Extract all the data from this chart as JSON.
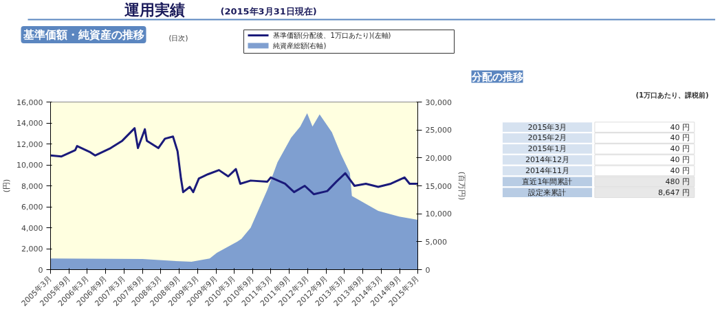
{
  "chart_data": [
    {
      "type": "line",
      "title": "運用実績",
      "subtitle": "(2015年3月31日現在)",
      "annotations": [
        "基準価額・純資産の推移",
        "(日次)"
      ],
      "ylabel": "(円)",
      "y2label": "(百万円)",
      "xlim": [
        "2005-03",
        "2015-03"
      ],
      "xticks": [
        {
          "value": "2005-03",
          "label": "2005年3月"
        },
        {
          "value": "2005-09",
          "label": "2005年9月"
        },
        {
          "value": "2006-03",
          "label": "2006年3月"
        },
        {
          "value": "2006-09",
          "label": "2006年9月"
        },
        {
          "value": "2007-03",
          "label": "2007年3月"
        },
        {
          "value": "2007-09",
          "label": "2007年9月"
        },
        {
          "value": "2008-03",
          "label": "2008年3月"
        },
        {
          "value": "2008-09",
          "label": "2008年9月"
        },
        {
          "value": "2009-03",
          "label": "2009年3月"
        },
        {
          "value": "2009-09",
          "label": "2009年9月"
        },
        {
          "value": "2010-03",
          "label": "2010年3月"
        },
        {
          "value": "2010-09",
          "label": "2010年9月"
        },
        {
          "value": "2011-03",
          "label": "2011年3月"
        },
        {
          "value": "2011-09",
          "label": "2011年9月"
        },
        {
          "value": "2012-03",
          "label": "2012年3月"
        },
        {
          "value": "2012-09",
          "label": "2012年9月"
        },
        {
          "value": "2013-03",
          "label": "2013年3月"
        },
        {
          "value": "2013-09",
          "label": "2013年9月"
        },
        {
          "value": "2014-03",
          "label": "2014年3月"
        },
        {
          "value": "2014-09",
          "label": "2014年9月"
        },
        {
          "value": "2015-03",
          "label": "2015年3月"
        }
      ],
      "ylim": [
        0,
        16000
      ],
      "yticks": [
        0,
        {
          "value": 2000,
          "label": "2,000"
        },
        {
          "value": 4000,
          "label": "4,000"
        },
        {
          "value": 6000,
          "label": "6,000"
        },
        {
          "value": 8000,
          "label": "8,000"
        },
        {
          "value": 10000,
          "label": "10,000"
        },
        {
          "value": 12000,
          "label": "12,000"
        },
        {
          "value": 14000,
          "label": "14,000"
        },
        {
          "value": 16000,
          "label": "16,000"
        }
      ],
      "y2lim": [
        0,
        30000
      ],
      "y2ticks": [
        0,
        {
          "value": 5000,
          "label": "5,000"
        },
        {
          "value": 10000,
          "label": "10,000"
        },
        {
          "value": 15000,
          "label": "15,000"
        },
        {
          "value": 20000,
          "label": "20,000"
        },
        {
          "value": 25000,
          "label": "25,000"
        },
        {
          "value": 30000,
          "label": "30,000"
        }
      ],
      "legend": "top right",
      "grid": false,
      "series": [
        {
          "name": "基準価額(分配後、1万口あたり)(左軸)",
          "type": "line",
          "color": "#1a1a7a",
          "x": [
            "2005-03",
            "2005-06-15",
            "2005-11",
            "2005-11-20",
            "2006-04",
            "2006-05-18",
            "2006-10-20",
            "2007-02-12",
            "2007-06-15",
            "2007-07-18",
            "2007-09-25",
            "2007-10-15",
            "2008-02-06",
            "2008-04-12",
            "2008-07",
            "2008-08-15",
            "2008-09-18",
            "2008-10-10",
            "2008-12-15",
            "2009-01-18",
            "2009-03-15",
            "2009-06-12",
            "2009-10",
            "2010-01",
            "2010-03-18",
            "2010-05",
            "2010-08-12",
            "2011-01-25",
            "2011-03",
            "2011-07-20",
            "2011-10-18",
            "2012-02",
            "2012-05",
            "2012-09-12",
            "2012-12-12",
            "2013-03-10",
            "2013-06-10",
            "2013-10",
            "2014-02",
            "2014-06-06",
            "2014-10-20",
            "2014-12-10",
            "2015-03"
          ],
          "values": [
            10900,
            10800,
            11400,
            11800,
            11200,
            10900,
            11600,
            12300,
            13500,
            11600,
            13400,
            12300,
            11600,
            12500,
            12700,
            11300,
            8700,
            7400,
            7900,
            7400,
            8700,
            9100,
            9500,
            8900,
            9600,
            8200,
            8500,
            8400,
            8800,
            8200,
            7400,
            8000,
            7200,
            7500,
            8400,
            9200,
            8000,
            8200,
            7900,
            8200,
            8800,
            8200,
            8200
          ]
        },
        {
          "name": "純資産総額(右軸)",
          "type": "area",
          "axis": "y2",
          "color": "#7f9fd0",
          "x": [
            "2005-03",
            "2007-09",
            "2008-09",
            "2009-01",
            "2009-07",
            "2009-09-10",
            "2010-04",
            "2010-05-12",
            "2010-08-12",
            "2011-01-25",
            "2011-05-06",
            "2011-09-18",
            "2011-12-18",
            "2012-02-25",
            "2012-04-18",
            "2012-06-28",
            "2012-10-28",
            "2013-01-25",
            "2013-04-25",
            "2013-05-15",
            "2014-02",
            "2014-08-28",
            "2015-03"
          ],
          "values": [
            2000,
            1900,
            1500,
            1400,
            2000,
            3000,
            5000,
            5500,
            7500,
            14300,
            19200,
            23600,
            25600,
            28000,
            25600,
            27800,
            24600,
            20700,
            17300,
            13200,
            10500,
            9500,
            8900
          ]
        }
      ]
    },
    {
      "type": "other",
      "title": "分配の推移",
      "subtitle": "(1万口あたり、課税前)",
      "annotations": [
        "2015年3月",
        "40 円",
        "2015年2月",
        "40 円",
        "2015年1月",
        "40 円",
        "2014年12月",
        "40 円",
        "2014年11月",
        "40 円",
        "直近1年間累計",
        "480 円",
        "設定来累計",
        "8,647 円"
      ]
    }
  ]
}
